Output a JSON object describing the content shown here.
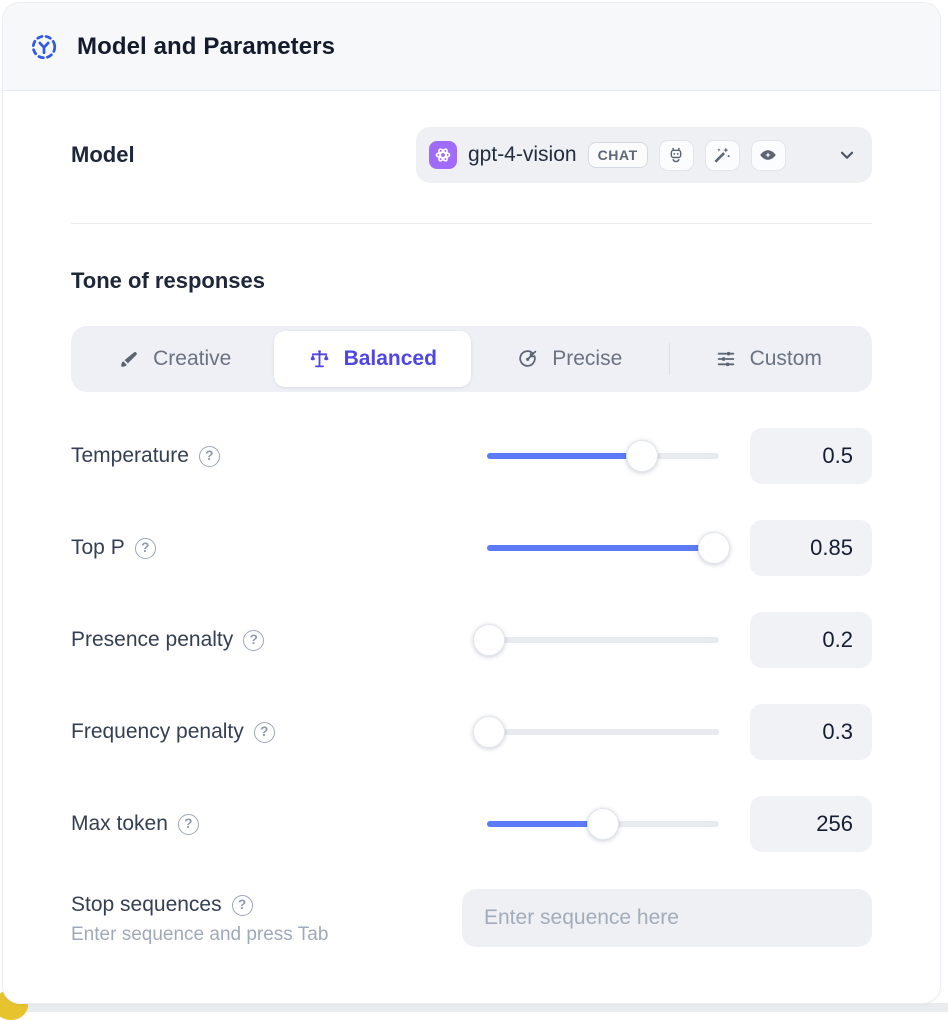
{
  "header": {
    "title": "Model and Parameters"
  },
  "model_row": {
    "label": "Model",
    "selected_model": "gpt-4-vision",
    "type_badge": "CHAT",
    "capability_icons": [
      "robot-icon",
      "magic-wand-icon",
      "vision-eye-icon"
    ]
  },
  "tone": {
    "title": "Tone of responses",
    "selected": "Balanced",
    "options": [
      {
        "label": "Creative",
        "icon": "brush-icon"
      },
      {
        "label": "Balanced",
        "icon": "scale-icon"
      },
      {
        "label": "Precise",
        "icon": "target-icon"
      },
      {
        "label": "Custom",
        "icon": "sliders-icon"
      }
    ]
  },
  "parameters": {
    "rows": [
      {
        "label": "Temperature",
        "value": "0.5",
        "percent": 67
      },
      {
        "label": "Top P",
        "value": "0.85",
        "percent": 98
      },
      {
        "label": "Presence penalty",
        "value": "0.2",
        "percent": 1
      },
      {
        "label": "Frequency penalty",
        "value": "0.3",
        "percent": 1
      },
      {
        "label": "Max token",
        "value": "256",
        "percent": 50
      }
    ]
  },
  "stop_sequences": {
    "label": "Stop sequences",
    "hint": "Enter sequence and press Tab",
    "placeholder": "Enter sequence here"
  },
  "glyphs": {
    "help": "?"
  },
  "colors": {
    "accent_blue": "#5d7bf5",
    "selected_indigo": "#4f46e5",
    "provider_purple": "#a06bf9",
    "header_icon_blue": "#2f5ae8",
    "warning_yellow": "#e7c32d"
  }
}
